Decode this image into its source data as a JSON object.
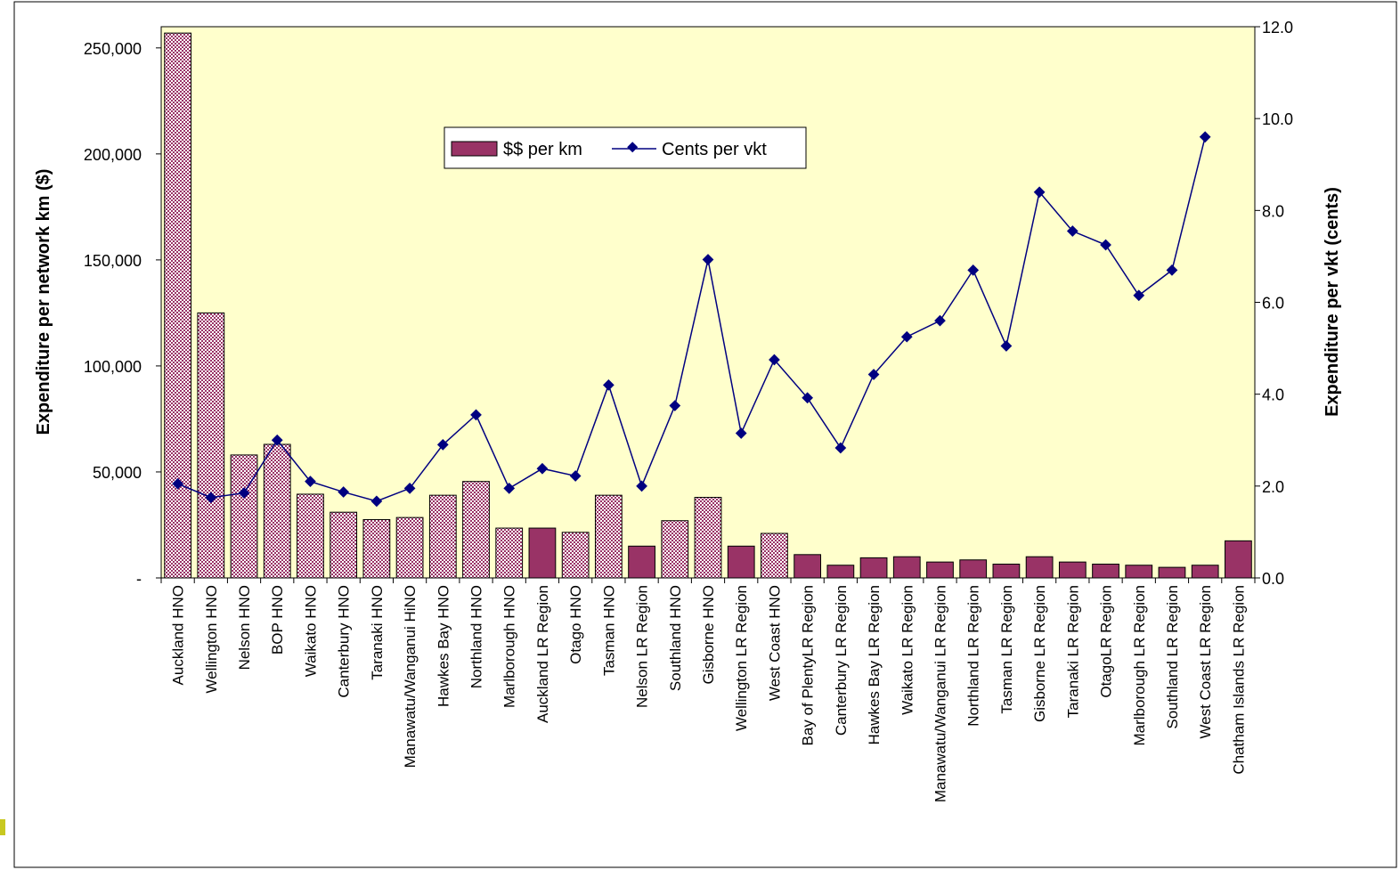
{
  "chart_data": {
    "type": "bar",
    "categories": [
      "Auckland HNO",
      "Wellington HNO",
      "Nelson HNO",
      "BOP HNO",
      "Waikato HNO",
      "Canterbury HNO",
      "Taranaki HNO",
      "Manawatu/Wanganui HiNO",
      "Hawkes Bay HNO",
      "Northland HNO",
      "Marlborough HNO",
      "Auckland LR Region",
      "Otago HNO",
      "Tasman HNO",
      "Nelson LR Region",
      "Southland HNO",
      "Gisborne HNO",
      "Wellington LR Region",
      "West Coast HNO",
      "Bay of PlentyLR Region",
      "Canterbury LR Region",
      "Hawkes Bay LR Region",
      "Waikato LR Region",
      "Manawatu/Wanganui LR Region",
      "Northland LR Region",
      "Tasman LR Region",
      "Gisborne LR Region",
      "Taranaki LR Region",
      "OtagoLR Region",
      "Marlborough LR Region",
      "Southland LR Region",
      "West Coast LR Region",
      "Chatham Islands LR Region"
    ],
    "series": [
      {
        "name": "$$ per km",
        "axis": "left",
        "type": "bar",
        "values": [
          257000,
          125000,
          58000,
          63000,
          39500,
          31000,
          27500,
          28500,
          39000,
          45500,
          23500,
          23500,
          21500,
          39000,
          15000,
          27000,
          38000,
          15000,
          21000,
          11000,
          6000,
          9500,
          10000,
          7500,
          8500,
          6500,
          10000,
          7500,
          6500,
          6000,
          5000,
          6000,
          17500
        ],
        "pattern": [
          "checker",
          "checker",
          "checker",
          "checker",
          "checker",
          "checker",
          "checker",
          "checker",
          "checker",
          "checker",
          "checker",
          "solid",
          "checker",
          "checker",
          "solid",
          "checker",
          "checker",
          "solid",
          "checker",
          "solid",
          "solid",
          "solid",
          "solid",
          "solid",
          "solid",
          "solid",
          "solid",
          "solid",
          "solid",
          "solid",
          "solid",
          "solid",
          "solid"
        ]
      },
      {
        "name": "Cents per vkt",
        "axis": "right",
        "type": "line",
        "values": [
          2.05,
          1.75,
          1.85,
          3.0,
          2.1,
          1.87,
          1.67,
          1.95,
          2.9,
          3.55,
          1.95,
          2.38,
          2.22,
          4.2,
          2.0,
          3.75,
          6.93,
          3.15,
          4.75,
          3.92,
          2.83,
          4.43,
          5.25,
          5.6,
          6.7,
          5.05,
          8.4,
          7.55,
          7.25,
          6.15,
          6.7,
          9.6,
          null
        ]
      }
    ],
    "ylabel": "Expenditure per network km ($)",
    "y2label": "Expenditure per vkt (cents)",
    "ylim": [
      0,
      260000
    ],
    "y2lim": [
      0,
      12
    ],
    "yticks": [
      "-",
      "50,000",
      "100,000",
      "150,000",
      "200,000",
      "250,000"
    ],
    "y2ticks": [
      "0.0",
      "2.0",
      "4.0",
      "6.0",
      "8.0",
      "10.0",
      "12.0"
    ],
    "legend": "top-center",
    "grid": false,
    "colors": {
      "plot_background": "#ffffcc",
      "bar_fill": "#993366",
      "bar_checker_light": "#ffffff",
      "line": "#000080",
      "accent": "#c8c820"
    }
  }
}
